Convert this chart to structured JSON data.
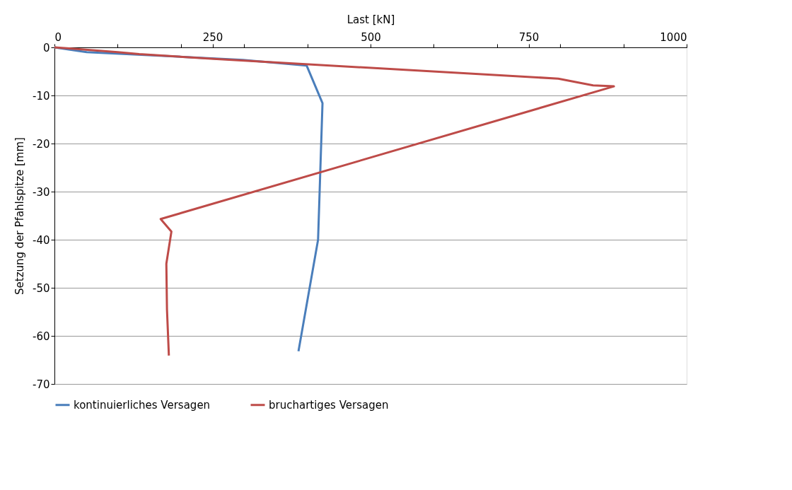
{
  "chart_data": {
    "type": "line",
    "xlabel": "Last  [kN]",
    "ylabel": "Setzung der Pfahlspitze  [mm]",
    "xlim": [
      0,
      1000
    ],
    "ylim": [
      -70,
      0
    ],
    "xticks": [
      0,
      {
        "value": 100,
        "label": null
      },
      {
        "value": 200,
        "label": null
      },
      250,
      {
        "value": 300,
        "label": null
      },
      {
        "value": 400,
        "label": null
      },
      500,
      {
        "value": 600,
        "label": null
      },
      {
        "value": 700,
        "label": null
      },
      750,
      {
        "value": 800,
        "label": null
      },
      {
        "value": 900,
        "label": null
      },
      1000
    ],
    "yticks": [
      0,
      -10,
      -20,
      -30,
      -40,
      -50,
      -60,
      -70
    ],
    "grid": "y",
    "legend": "bottom",
    "marker": "none",
    "line_style": "solid",
    "series": [
      {
        "name": "kontinuierliches Versagen",
        "color": "#4a7ebb",
        "x": [
          0,
          51,
          298,
          399,
          424,
          417,
          386
        ],
        "values": [
          0,
          -1.0,
          -2.6,
          -3.8,
          -11.6,
          -40,
          -63.2
        ]
      },
      {
        "name": "bruchartiges Versagen",
        "color": "#be4b48",
        "x": [
          0,
          20,
          100,
          134,
          252,
          797,
          852,
          885,
          168,
          185,
          177,
          178,
          181
        ],
        "values": [
          0,
          -0.2,
          -1.0,
          -1.4,
          -2.4,
          -6.5,
          -7.9,
          -8.1,
          -35.7,
          -38.3,
          -45,
          -54.5,
          -64.1
        ]
      }
    ]
  }
}
